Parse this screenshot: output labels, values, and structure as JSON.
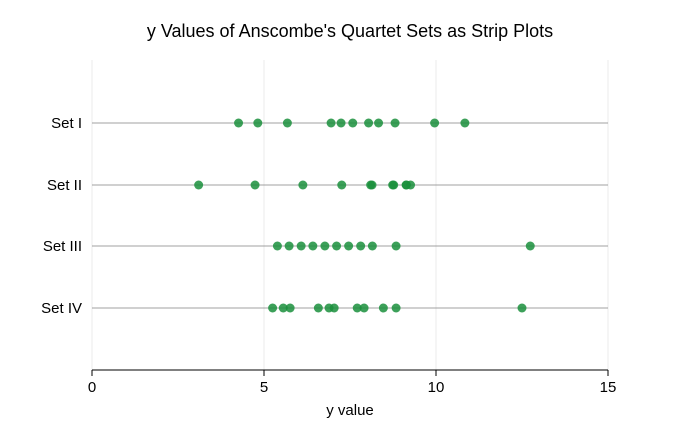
{
  "chart_data": {
    "type": "scatter",
    "title": "y Values of Anscombe's Quartet Sets as Strip Plots",
    "xlabel": "y value",
    "ylabel": "",
    "xlim": [
      0,
      15
    ],
    "xticks": [
      0,
      5,
      10,
      15
    ],
    "xtick_labels": [
      "0",
      "5",
      "10",
      "15"
    ],
    "grid": "vertical",
    "categories": [
      "Set I",
      "Set II",
      "Set III",
      "Set IV"
    ],
    "series": [
      {
        "name": "Set I",
        "values": [
          8.04,
          6.95,
          7.58,
          8.81,
          8.33,
          9.96,
          7.24,
          4.26,
          10.84,
          4.82,
          5.68
        ]
      },
      {
        "name": "Set II",
        "values": [
          9.14,
          8.14,
          8.74,
          8.77,
          9.26,
          8.1,
          6.13,
          3.1,
          9.13,
          7.26,
          4.74
        ]
      },
      {
        "name": "Set III",
        "values": [
          7.46,
          6.77,
          12.74,
          7.11,
          7.81,
          8.84,
          6.08,
          5.39,
          8.15,
          6.42,
          5.73
        ]
      },
      {
        "name": "Set IV",
        "values": [
          6.58,
          5.76,
          7.71,
          8.84,
          8.47,
          7.04,
          5.25,
          12.5,
          5.56,
          7.91,
          6.89
        ]
      }
    ],
    "colors": {
      "point": "#1a8f3c",
      "row_line": "#a0a0a0",
      "grid": "#ebebeb",
      "axis": "#000000"
    }
  }
}
